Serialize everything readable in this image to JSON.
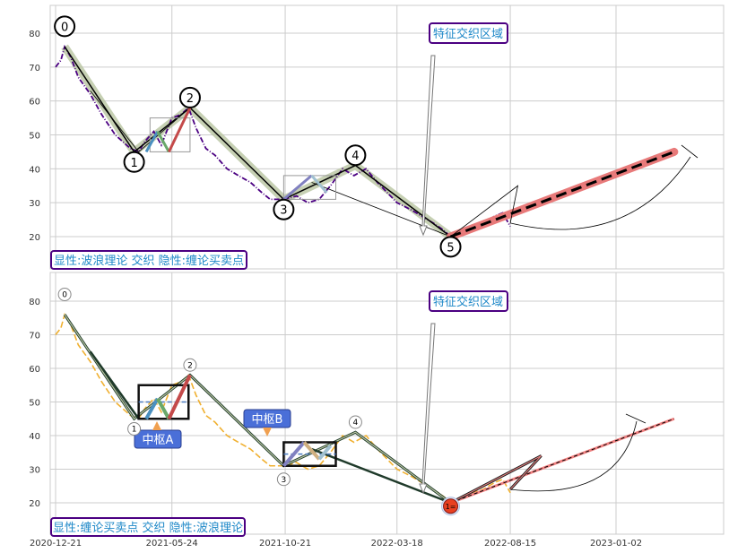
{
  "chart_data": [
    {
      "type": "line",
      "panel": "top",
      "x_ticks": [
        "2020-12-21",
        "2021-05-24",
        "2021-10-21",
        "2022-03-18",
        "2022-08-15",
        "2023-01-02"
      ],
      "ylim": [
        12,
        87
      ],
      "y_ticks": [
        20,
        30,
        40,
        50,
        60,
        70,
        80
      ],
      "grid": true,
      "series": [
        {
          "style": "purple dash-dot price",
          "x": [
            "2020-12-21",
            "2020-12-28",
            "2021-01-02",
            "2021-01-10",
            "2021-01-20",
            "2021-02-05",
            "2021-02-20",
            "2021-03-10",
            "2021-03-30",
            "2021-04-10",
            "2021-04-18",
            "2021-04-30",
            "2021-05-10",
            "2021-05-24",
            "2021-06-05",
            "2021-06-15",
            "2021-06-25",
            "2021-07-08",
            "2021-07-20",
            "2021-08-05",
            "2021-08-20",
            "2021-09-05",
            "2021-09-20",
            "2021-10-01",
            "2021-10-21",
            "2021-11-05",
            "2021-11-20",
            "2021-12-05",
            "2021-12-20",
            "2022-01-05",
            "2022-01-20",
            "2022-02-05",
            "2022-02-20",
            "2022-03-05",
            "2022-03-18",
            "2022-04-05",
            "2022-04-20",
            "2022-05-05",
            "2022-05-18",
            "2022-05-28",
            "2022-06-10",
            "2022-06-25",
            "2022-07-10",
            "2022-07-25",
            "2022-08-05",
            "2022-08-15"
          ],
          "y": [
            70,
            72,
            76,
            73,
            67,
            62,
            56,
            50,
            46,
            45,
            48,
            51,
            47,
            55,
            56,
            58,
            52,
            46,
            44,
            40,
            38,
            36,
            33,
            31,
            31,
            32,
            30,
            31,
            35,
            40,
            38,
            40,
            36,
            33,
            30,
            28,
            26,
            24,
            22,
            20,
            21,
            23,
            24,
            26,
            27,
            23
          ]
        },
        {
          "style": "black wave line",
          "x": [
            "2021-01-02",
            "2021-04-04",
            "2021-06-17",
            "2021-10-19",
            "2022-01-22",
            "2022-05-28",
            "2022-08-15",
            "2022-09-25"
          ],
          "y": [
            76,
            45,
            58,
            31,
            41,
            20,
            24,
            34
          ]
        },
        {
          "style": "dashed projection",
          "x": [
            "2022-05-28",
            "2023-03-20"
          ],
          "y": [
            20,
            45
          ]
        }
      ],
      "wave_labels": [
        {
          "label": "0",
          "x": "2021-01-02",
          "y": 82
        },
        {
          "label": "1",
          "x": "2021-04-04",
          "y": 42
        },
        {
          "label": "2",
          "x": "2021-06-17",
          "y": 61
        },
        {
          "label": "3",
          "x": "2021-10-19",
          "y": 28
        },
        {
          "label": "4",
          "x": "2022-01-22",
          "y": 44
        },
        {
          "label": "5",
          "x": "2022-05-28",
          "y": 17
        }
      ],
      "annotations": {
        "region": "特征交织区域",
        "legend_note": "显性:波浪理论 交织 隐性:缠论买卖点"
      }
    },
    {
      "type": "line",
      "panel": "bottom",
      "x_ticks": [
        "2020-12-21",
        "2021-05-24",
        "2021-10-21",
        "2022-03-18",
        "2022-08-15",
        "2023-01-02"
      ],
      "ylim": [
        12,
        87
      ],
      "y_ticks": [
        20,
        30,
        40,
        50,
        60,
        70,
        80
      ],
      "grid": true,
      "series": [
        {
          "style": "orange dashed price",
          "x": [
            "2020-12-21",
            "2020-12-28",
            "2021-01-02",
            "2021-01-10",
            "2021-01-20",
            "2021-02-05",
            "2021-02-20",
            "2021-03-10",
            "2021-03-30",
            "2021-04-10",
            "2021-04-18",
            "2021-04-30",
            "2021-05-10",
            "2021-05-24",
            "2021-06-05",
            "2021-06-15",
            "2021-06-25",
            "2021-07-08",
            "2021-07-20",
            "2021-08-05",
            "2021-08-20",
            "2021-09-05",
            "2021-09-20",
            "2021-10-01",
            "2021-10-21",
            "2021-11-05",
            "2021-11-20",
            "2021-12-05",
            "2021-12-20",
            "2022-01-05",
            "2022-01-20",
            "2022-02-05",
            "2022-02-20",
            "2022-03-05",
            "2022-03-18",
            "2022-04-05",
            "2022-04-20",
            "2022-05-05",
            "2022-05-18",
            "2022-05-28",
            "2022-06-10",
            "2022-06-25",
            "2022-07-10",
            "2022-07-25",
            "2022-08-05",
            "2022-08-15"
          ],
          "y": [
            70,
            72,
            76,
            73,
            67,
            62,
            56,
            50,
            46,
            45,
            48,
            51,
            47,
            55,
            56,
            58,
            52,
            46,
            44,
            40,
            38,
            36,
            33,
            31,
            31,
            32,
            30,
            31,
            35,
            40,
            38,
            40,
            36,
            33,
            30,
            28,
            26,
            24,
            22,
            20,
            21,
            23,
            24,
            26,
            27,
            23
          ]
        },
        {
          "style": "black stroke line",
          "x": [
            "2021-01-02",
            "2021-04-04",
            "2021-06-17",
            "2021-10-19",
            "2022-01-22",
            "2022-05-28",
            "2022-08-15",
            "2022-09-25"
          ],
          "y": [
            76,
            45,
            58,
            31,
            41,
            20,
            24,
            34
          ]
        },
        {
          "style": "dashed projection",
          "x": [
            "2022-05-28",
            "2023-03-20"
          ],
          "y": [
            20,
            45
          ]
        }
      ],
      "wave_labels": [
        {
          "label": "0",
          "x": "2021-01-02",
          "y": 82
        },
        {
          "label": "1",
          "x": "2021-04-04",
          "y": 42
        },
        {
          "label": "2",
          "x": "2021-06-17",
          "y": 61
        },
        {
          "label": "3",
          "x": "2021-10-19",
          "y": 27
        },
        {
          "label": "4",
          "x": "2022-01-22",
          "y": 44
        },
        {
          "label": "1=",
          "x": "2022-05-28",
          "y": 19
        }
      ],
      "pivots": [
        {
          "label": "中枢A",
          "x": [
            "2021-04-10",
            "2021-06-15"
          ],
          "y": [
            45,
            55
          ]
        },
        {
          "label": "中枢B",
          "x": [
            "2021-10-19",
            "2021-12-27"
          ],
          "y": [
            31,
            38
          ]
        }
      ],
      "annotations": {
        "region": "特征交织区域",
        "legend_note": "显性:缠论买卖点 交织 隐性:波浪理论"
      }
    }
  ]
}
